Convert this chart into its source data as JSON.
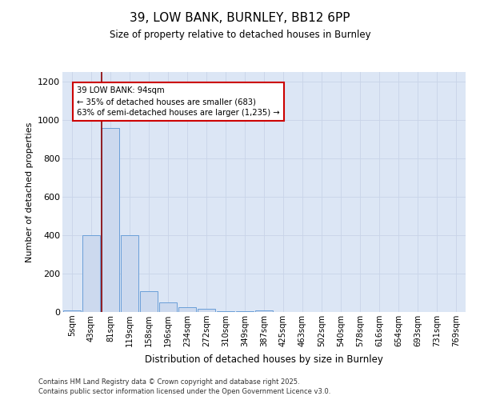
{
  "title_line1": "39, LOW BANK, BURNLEY, BB12 6PP",
  "title_line2": "Size of property relative to detached houses in Burnley",
  "xlabel": "Distribution of detached houses by size in Burnley",
  "ylabel": "Number of detached properties",
  "categories": [
    "5sqm",
    "43sqm",
    "81sqm",
    "119sqm",
    "158sqm",
    "196sqm",
    "234sqm",
    "272sqm",
    "310sqm",
    "349sqm",
    "387sqm",
    "425sqm",
    "463sqm",
    "502sqm",
    "540sqm",
    "578sqm",
    "616sqm",
    "654sqm",
    "693sqm",
    "731sqm",
    "769sqm"
  ],
  "values": [
    10,
    400,
    960,
    400,
    110,
    50,
    25,
    15,
    5,
    5,
    8,
    0,
    0,
    0,
    0,
    0,
    0,
    0,
    0,
    0,
    0
  ],
  "bar_color": "#ccd9ee",
  "bar_edge_color": "#6a9fd8",
  "vline_x": 2.0,
  "vline_color": "#8b0000",
  "annotation_text": "39 LOW BANK: 94sqm\n← 35% of detached houses are smaller (683)\n63% of semi-detached houses are larger (1,235) →",
  "annotation_box_color": "white",
  "annotation_box_edge": "#cc0000",
  "ylim": [
    0,
    1250
  ],
  "yticks": [
    0,
    200,
    400,
    600,
    800,
    1000,
    1200
  ],
  "grid_color": "#c8d4e8",
  "background_color": "#dce6f5",
  "footer_line1": "Contains HM Land Registry data © Crown copyright and database right 2025.",
  "footer_line2": "Contains public sector information licensed under the Open Government Licence v3.0."
}
